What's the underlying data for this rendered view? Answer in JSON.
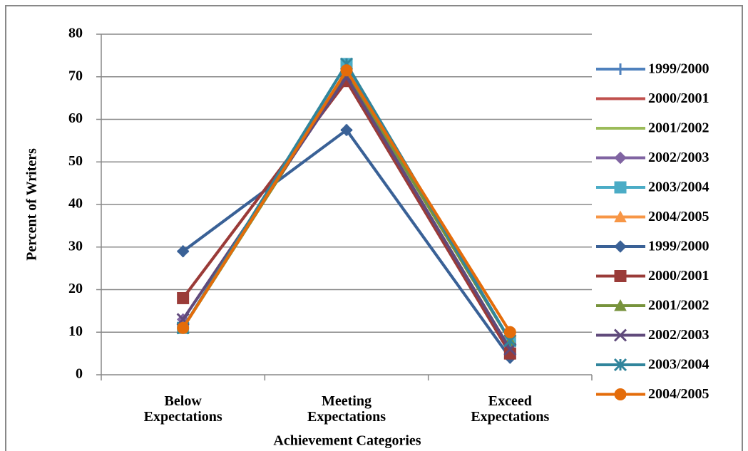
{
  "chart_data": {
    "type": "line",
    "x_label": "Achievement Categories",
    "y_label": "Percent of Writers",
    "categories": [
      "Below Expectations",
      "Meeting Expectations",
      "Exceed Expectations"
    ],
    "ylim": [
      0,
      80
    ],
    "yticks": [
      0,
      10,
      20,
      30,
      40,
      50,
      60,
      70,
      80
    ],
    "grid": true,
    "legend": "right",
    "series": [
      {
        "name": "1999/2000",
        "color": "#4f81bd",
        "marker": "plus",
        "values": [
          29,
          57.5,
          4
        ]
      },
      {
        "name": "2000/2001",
        "color": "#c0504d",
        "marker": "none",
        "values": [
          18,
          69,
          5
        ]
      },
      {
        "name": "2001/2002",
        "color": "#9bbb59",
        "marker": "none",
        "values": [
          11,
          71,
          8
        ]
      },
      {
        "name": "2002/2003",
        "color": "#8064a2",
        "marker": "diamond",
        "values": [
          13,
          70,
          6
        ]
      },
      {
        "name": "2003/2004",
        "color": "#4bacc6",
        "marker": "square",
        "values": [
          11,
          73,
          8
        ]
      },
      {
        "name": "2004/2005",
        "color": "#f79646",
        "marker": "triangle",
        "values": [
          11,
          71.5,
          10
        ]
      },
      {
        "name": "1999/2000",
        "color": "#3a6196",
        "marker": "diamond",
        "values": [
          29,
          57.5,
          4
        ]
      },
      {
        "name": "2000/2001",
        "color": "#9a3b38",
        "marker": "square",
        "values": [
          18,
          69,
          5
        ]
      },
      {
        "name": "2001/2002",
        "color": "#77933c",
        "marker": "triangle",
        "values": [
          11,
          71,
          8
        ]
      },
      {
        "name": "2002/2003",
        "color": "#604a7b",
        "marker": "x",
        "values": [
          13,
          70,
          6
        ]
      },
      {
        "name": "2003/2004",
        "color": "#31859c",
        "marker": "asterisk",
        "values": [
          11,
          73,
          8
        ]
      },
      {
        "name": "2004/2005",
        "color": "#e46c0a",
        "marker": "circle",
        "values": [
          11,
          71.5,
          10
        ]
      }
    ]
  }
}
